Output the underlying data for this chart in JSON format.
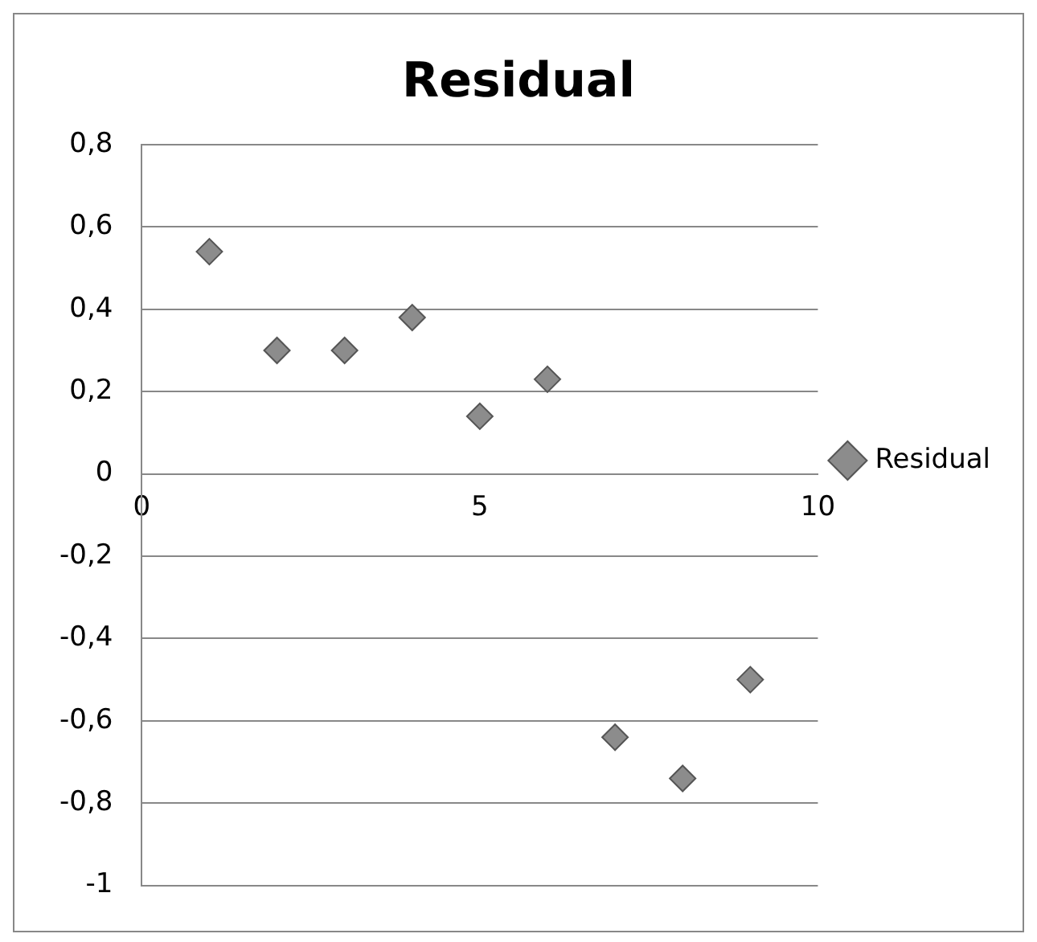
{
  "chart_data": {
    "type": "scatter",
    "title": "Residual",
    "x": [
      1,
      2,
      3,
      4,
      5,
      6,
      7,
      8,
      9
    ],
    "series": [
      {
        "name": "Residual",
        "color": "#8c8c8c",
        "values": [
          0.54,
          0.3,
          0.3,
          0.38,
          0.14,
          0.23,
          -0.64,
          -0.74,
          -0.5
        ]
      }
    ],
    "xlim": [
      0,
      10
    ],
    "xticks": [
      0,
      5,
      10
    ],
    "ylim": [
      -1,
      0.8
    ],
    "yticks": [
      {
        "value": -1,
        "label": "-1"
      },
      {
        "value": -0.8,
        "label": "-0,8"
      },
      {
        "value": -0.6,
        "label": "-0,6"
      },
      {
        "value": -0.4,
        "label": "-0,4"
      },
      {
        "value": -0.2,
        "label": "-0,2"
      },
      {
        "value": 0,
        "label": "0"
      },
      {
        "value": 0.2,
        "label": "0,2"
      },
      {
        "value": 0.4,
        "label": "0,4"
      },
      {
        "value": 0.6,
        "label": "0,6"
      },
      {
        "value": 0.8,
        "label": "0,8"
      }
    ],
    "grid": "y",
    "legend": "right",
    "marker": "diamond"
  }
}
